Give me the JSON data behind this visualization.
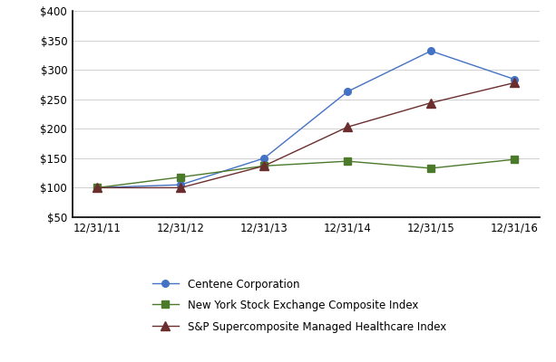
{
  "x_labels": [
    "12/31/11",
    "12/31/12",
    "12/31/13",
    "12/31/14",
    "12/31/15",
    "12/31/16"
  ],
  "centene": [
    100,
    105,
    150,
    263,
    332,
    284
  ],
  "nyse": [
    100,
    118,
    137,
    145,
    133,
    148
  ],
  "sp_health": [
    100,
    100,
    137,
    203,
    244,
    278
  ],
  "centene_color": "#4472C4",
  "nyse_color": "#4B7A2B",
  "sp_color": "#6B2E2E",
  "ylim": [
    50,
    400
  ],
  "yticks": [
    50,
    100,
    150,
    200,
    250,
    300,
    350,
    400
  ],
  "legend_labels": [
    "Centene Corporation",
    "New York Stock Exchange Composite Index",
    "S&P Supercomposite Managed Healthcare Index"
  ],
  "background_color": "#ffffff"
}
